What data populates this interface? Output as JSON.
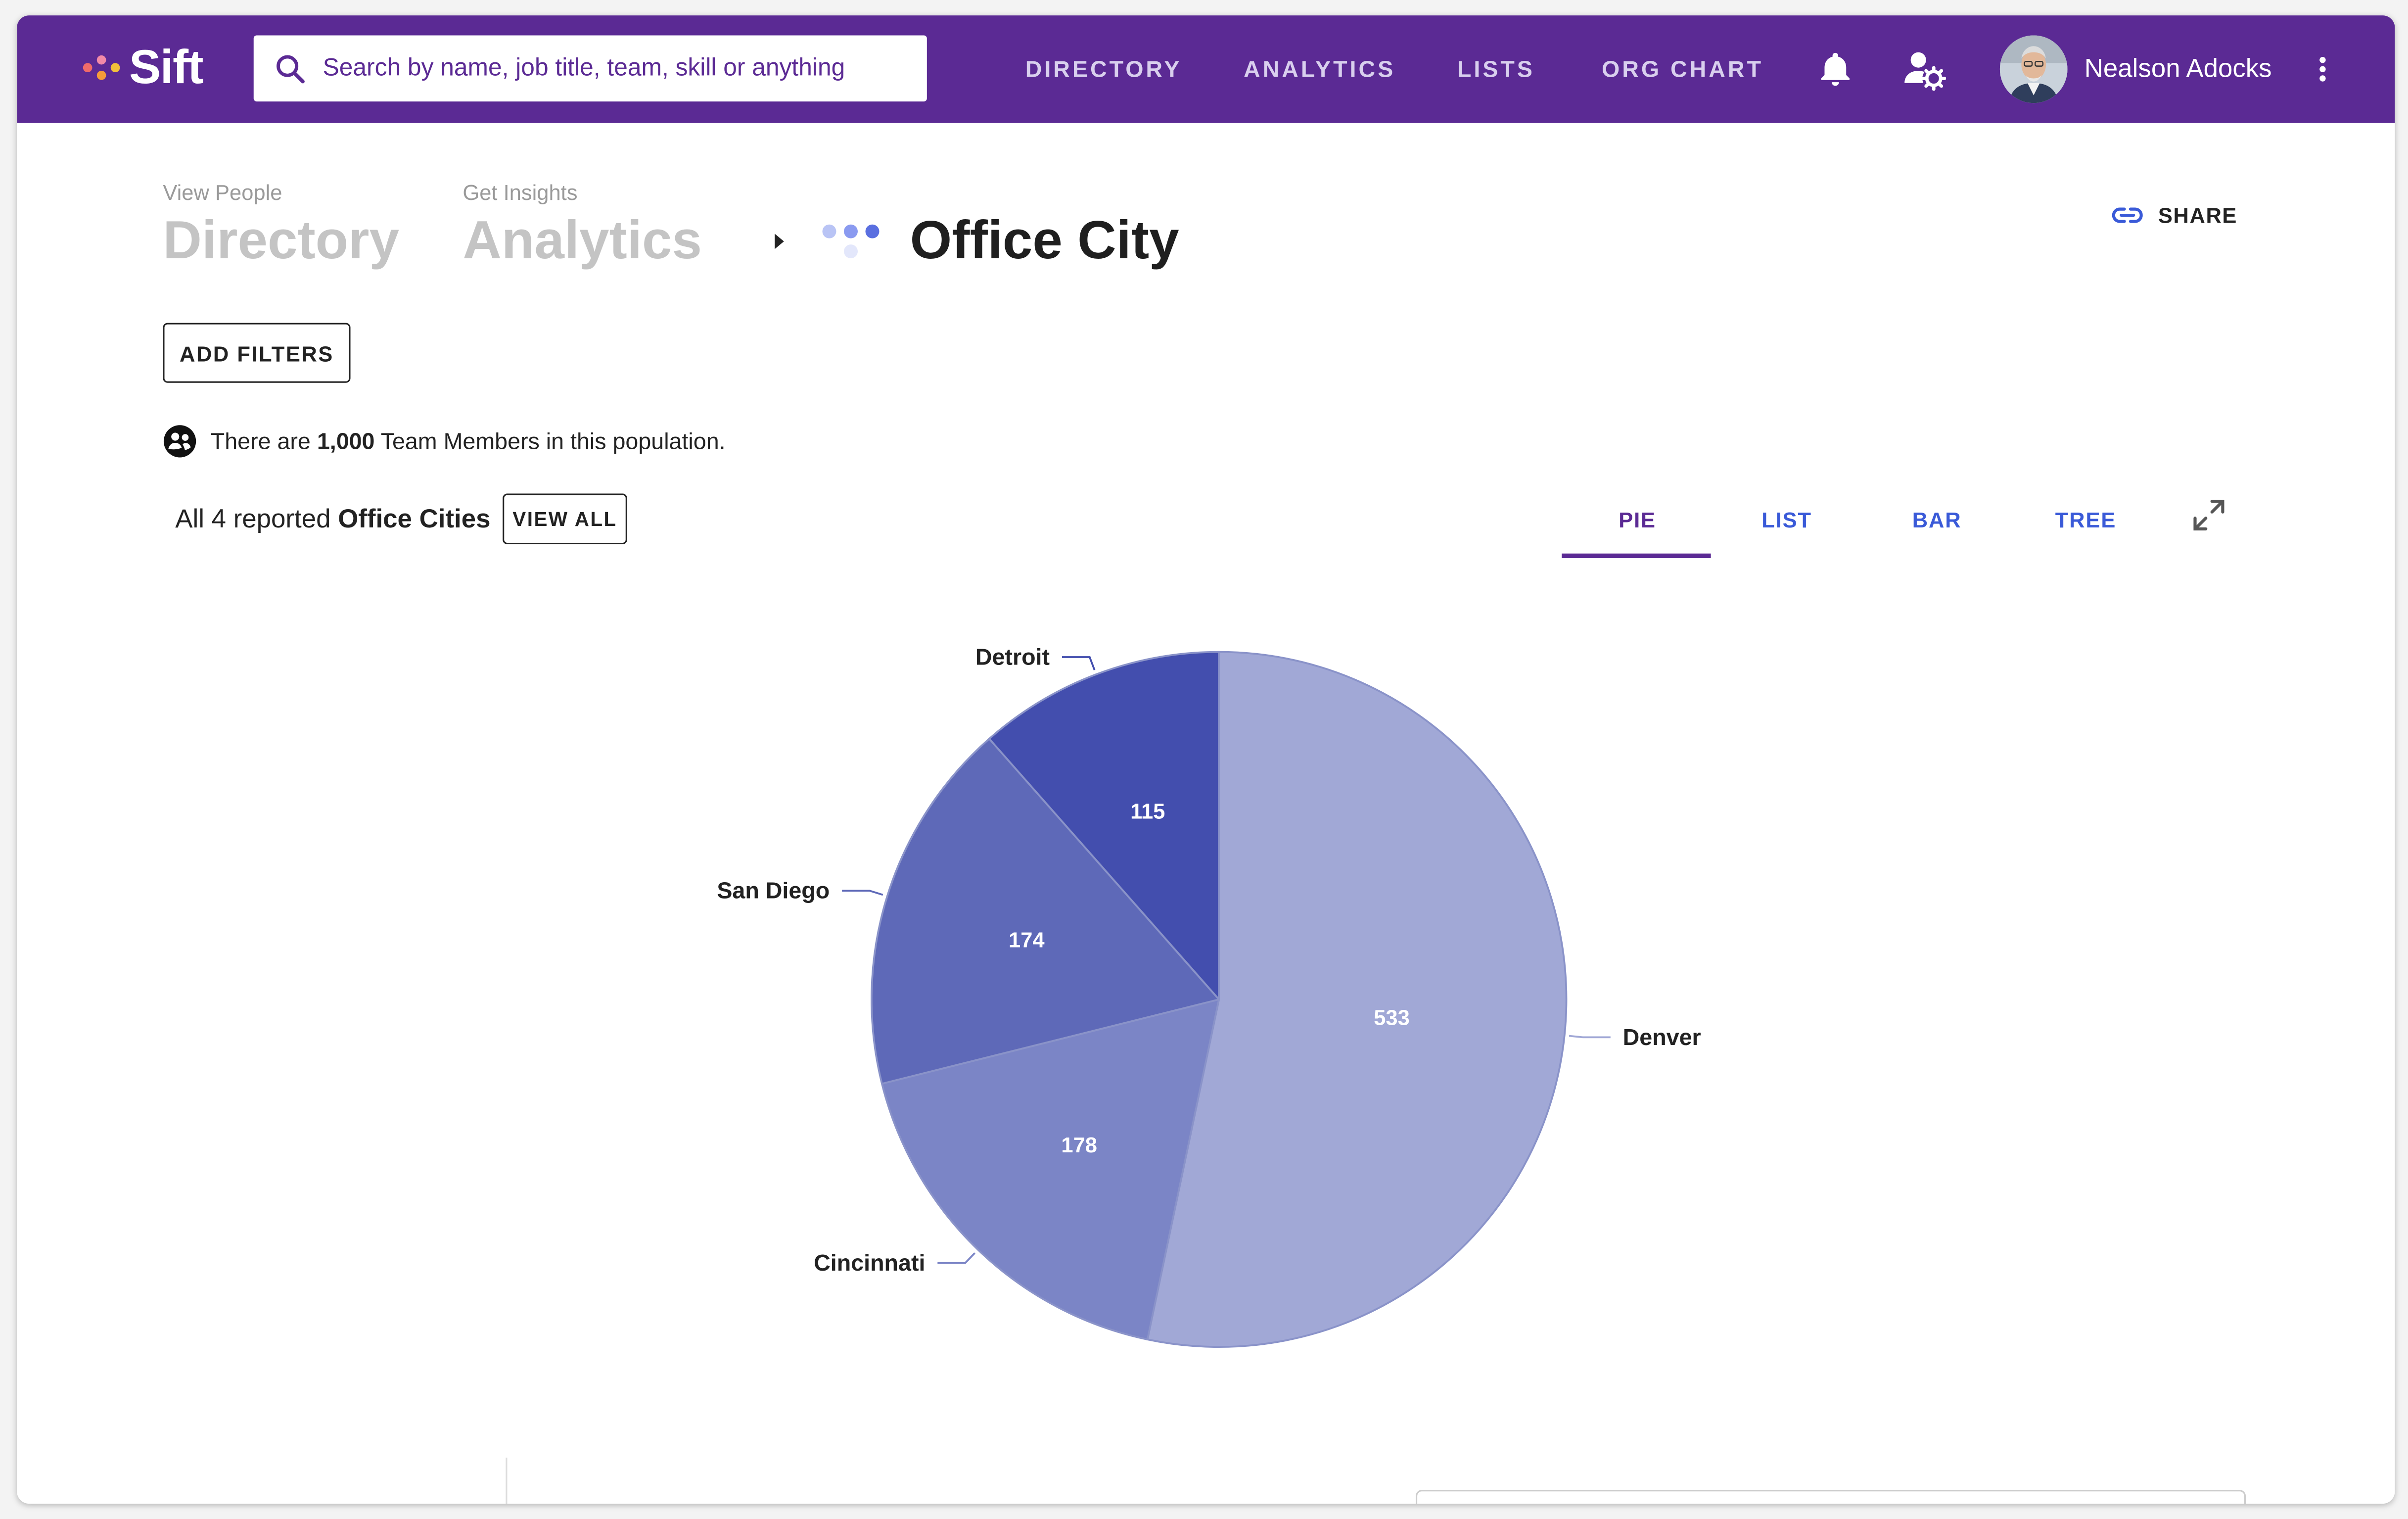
{
  "app": {
    "name": "Sift",
    "brand_color": "#5b2a94",
    "logo_dot_colors": [
      "#f06a6a",
      "#f59b3a",
      "#f28aa8",
      "#f3c13a"
    ]
  },
  "search": {
    "placeholder": "Search by name, job title, team, skill or anything"
  },
  "nav": {
    "links": [
      "DIRECTORY",
      "ANALYTICS",
      "LISTS",
      "ORG CHART"
    ],
    "icons": [
      "bell-icon",
      "user-settings-icon"
    ]
  },
  "user": {
    "name": "Nealson Adocks"
  },
  "breadcrumb": {
    "items": [
      {
        "caption": "View People",
        "label": "Directory"
      },
      {
        "caption": "Get Insights",
        "label": "Analytics"
      }
    ],
    "current": "Office City"
  },
  "share_label": "SHARE",
  "filters_button": "ADD FILTERS",
  "population": {
    "prefix": "There are",
    "count": "1,000",
    "suffix": "Team Members in this population."
  },
  "reported": {
    "prefix": "All 4 reported",
    "field": "Office Cities"
  },
  "view_all_label": "VIEW ALL",
  "view_tabs": {
    "items": [
      "PIE",
      "LIST",
      "BAR",
      "TREE"
    ],
    "active": "PIE"
  },
  "chart_data": {
    "type": "pie",
    "title": "",
    "slices": [
      {
        "label": "Denver",
        "value": 533,
        "color": "#a1a8d6"
      },
      {
        "label": "Cincinnati",
        "value": 178,
        "color": "#7b85c6"
      },
      {
        "label": "San Diego",
        "value": 174,
        "color": "#5e69b8"
      },
      {
        "label": "Detroit",
        "value": 115,
        "color": "#434eae"
      }
    ],
    "start": "top, clockwise",
    "legend": "none (outside labels with leader lines)"
  }
}
